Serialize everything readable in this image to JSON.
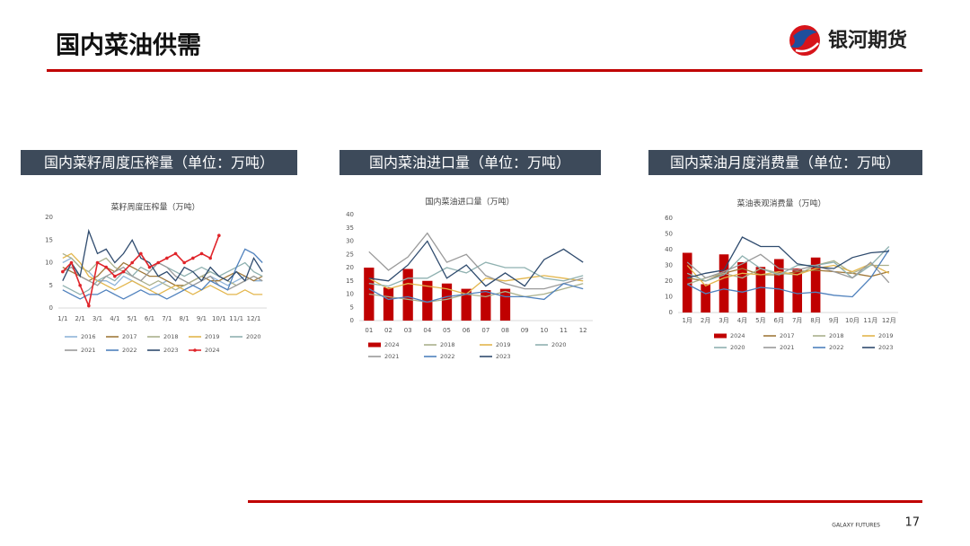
{
  "header": {
    "title": "国内菜油供需",
    "logo_text": "银河期货"
  },
  "panels": [
    "国内菜籽周度压榨量（单位：万吨）",
    "国内菜油进口量（单位：万吨）",
    "国内菜油月度消费量（单位：万吨）"
  ],
  "footer": {
    "brand": "GALAXY FUTURES",
    "page": "17"
  },
  "chart_data": [
    {
      "type": "line",
      "title": "菜籽周度压榨量（万吨）",
      "categories": [
        "1/1",
        null,
        "2/1",
        null,
        "3/1",
        null,
        "4/1",
        null,
        "5/1",
        null,
        "6/1",
        null,
        "7/1",
        null,
        "8/1",
        null,
        "9/1",
        null,
        "10/1",
        null,
        "11/1",
        null,
        "12/1",
        null
      ],
      "ylim": [
        0,
        20
      ],
      "yticks": [
        0,
        5,
        10,
        15,
        20
      ],
      "grid": false,
      "series": [
        {
          "name": "2016",
          "type": "line",
          "color": "#8fb4d9",
          "values": [
            10,
            11,
            9,
            8,
            6,
            6,
            5,
            7,
            6,
            5,
            4,
            5,
            6,
            5,
            4,
            5,
            6,
            7,
            6,
            5,
            6,
            7,
            6,
            6
          ]
        },
        {
          "name": "2017",
          "type": "line",
          "color": "#a0793a",
          "values": [
            9,
            8,
            7,
            6,
            7,
            9,
            8,
            10,
            9,
            8,
            7,
            7,
            6,
            5,
            5,
            6,
            7,
            6,
            6,
            7,
            8,
            7,
            6,
            7
          ]
        },
        {
          "name": "2018",
          "type": "line",
          "color": "#aab08c",
          "values": [
            12,
            11,
            9,
            8,
            10,
            11,
            9,
            8,
            7,
            6,
            5,
            6,
            5,
            4,
            5,
            6,
            7,
            8,
            7,
            6,
            5,
            6,
            7,
            6
          ]
        },
        {
          "name": "2019",
          "type": "line",
          "color": "#e3b64c",
          "values": [
            11,
            12,
            10,
            7,
            6,
            5,
            4,
            5,
            6,
            5,
            4,
            3,
            4,
            5,
            4,
            3,
            4,
            5,
            4,
            3,
            3,
            4,
            3,
            3
          ]
        },
        {
          "name": "2020",
          "type": "line",
          "color": "#8fb1b0",
          "values": [
            5,
            4,
            3,
            4,
            6,
            7,
            6,
            8,
            7,
            9,
            8,
            10,
            9,
            8,
            7,
            8,
            9,
            8,
            7,
            8,
            9,
            10,
            8,
            7
          ]
        },
        {
          "name": "2021",
          "type": "line",
          "color": "#9a9a9a",
          "values": [
            8,
            9,
            7,
            6,
            5,
            7,
            8,
            9,
            7,
            6,
            8,
            10,
            9,
            7,
            6,
            5,
            6,
            7,
            5,
            4,
            5,
            6,
            7,
            6
          ]
        },
        {
          "name": "2022",
          "type": "line",
          "color": "#4f81bd",
          "values": [
            4,
            3,
            2,
            3,
            3,
            4,
            3,
            2,
            3,
            4,
            3,
            3,
            2,
            3,
            4,
            5,
            4,
            6,
            5,
            4,
            9,
            13,
            12,
            10
          ]
        },
        {
          "name": "2023",
          "type": "line",
          "color": "#2f4b6e",
          "values": [
            6,
            10,
            7,
            17,
            12,
            13,
            10,
            12,
            15,
            11,
            10,
            7,
            8,
            6,
            9,
            8,
            6,
            9,
            7,
            6,
            8,
            6,
            11,
            8
          ]
        },
        {
          "name": "2024",
          "type": "line",
          "color": "#e0242a",
          "markers": true,
          "values": [
            8,
            10,
            5,
            0.5,
            10,
            9,
            7,
            8,
            10,
            12,
            9,
            10,
            11,
            12,
            10,
            11,
            12,
            11,
            16,
            null,
            null,
            null,
            null,
            null
          ]
        }
      ]
    },
    {
      "type": "combo",
      "title": "国内菜油进口量（万吨）",
      "categories": [
        "01",
        "02",
        "03",
        "04",
        "05",
        "06",
        "07",
        "08",
        "09",
        "10",
        "11",
        "12"
      ],
      "ylim": [
        0,
        40
      ],
      "yticks": [
        0,
        5,
        10,
        15,
        20,
        25,
        30,
        35,
        40
      ],
      "grid": false,
      "series": [
        {
          "name": "2024",
          "type": "bar",
          "color": "#c00000",
          "values": [
            20,
            12.5,
            19.5,
            15,
            14,
            12,
            11.5,
            12,
            null,
            null,
            null,
            null
          ]
        },
        {
          "name": "2018",
          "type": "line",
          "color": "#aab08c",
          "values": [
            10,
            9,
            8,
            7,
            8,
            10,
            9,
            11,
            9,
            10,
            12,
            14
          ]
        },
        {
          "name": "2019",
          "type": "line",
          "color": "#e3b64c",
          "values": [
            16,
            12,
            14,
            13,
            12,
            10,
            16,
            15,
            16,
            17,
            16,
            15
          ]
        },
        {
          "name": "2020",
          "type": "line",
          "color": "#8fb1b0",
          "values": [
            14,
            13,
            16,
            16,
            20,
            18,
            22,
            20,
            20,
            16,
            15,
            17
          ]
        },
        {
          "name": "2021",
          "type": "line",
          "color": "#9a9a9a",
          "values": [
            26,
            19,
            24,
            33,
            22,
            25,
            17,
            14,
            12,
            12,
            14,
            16
          ]
        },
        {
          "name": "2022",
          "type": "line",
          "color": "#4f81bd",
          "values": [
            12,
            8,
            9,
            7,
            9,
            10,
            11,
            9,
            9,
            8,
            14,
            12
          ]
        },
        {
          "name": "2023",
          "type": "line",
          "color": "#2f4b6e",
          "values": [
            16,
            15,
            21,
            30,
            16,
            21,
            13,
            18,
            13,
            23,
            27,
            22
          ]
        }
      ]
    },
    {
      "type": "combo",
      "title": "菜油表观消费量（万吨）",
      "categories": [
        "1月",
        "2月",
        "3月",
        "4月",
        "5月",
        "6月",
        "7月",
        "8月",
        "9月",
        "10月",
        "11月",
        "12月"
      ],
      "ylim": [
        0,
        60
      ],
      "yticks": [
        0,
        10,
        20,
        30,
        40,
        50,
        60
      ],
      "grid": false,
      "series": [
        {
          "name": "2024",
          "type": "bar",
          "color": "#c00000",
          "values": [
            38,
            18,
            37,
            32,
            29,
            34,
            28,
            35,
            null,
            null,
            null,
            null
          ]
        },
        {
          "name": "2017",
          "type": "line",
          "color": "#a0793a",
          "values": [
            22,
            20,
            25,
            28,
            24,
            24,
            26,
            27,
            26,
            25,
            23,
            26
          ]
        },
        {
          "name": "2018",
          "type": "line",
          "color": "#aab08c",
          "values": [
            18,
            22,
            25,
            22,
            28,
            25,
            24,
            30,
            33,
            25,
            30,
            30
          ]
        },
        {
          "name": "2019",
          "type": "line",
          "color": "#e3b64c",
          "values": [
            30,
            17,
            22,
            25,
            24,
            26,
            24,
            28,
            30,
            26,
            31,
            25
          ]
        },
        {
          "name": "2020",
          "type": "line",
          "color": "#8fb1b0",
          "values": [
            25,
            20,
            24,
            36,
            28,
            24,
            30,
            30,
            32,
            22,
            30,
            42
          ]
        },
        {
          "name": "2021",
          "type": "line",
          "color": "#9a9a9a",
          "values": [
            32,
            22,
            26,
            31,
            37,
            28,
            27,
            30,
            26,
            22,
            32,
            19
          ]
        },
        {
          "name": "2022",
          "type": "line",
          "color": "#4f81bd",
          "values": [
            18,
            12,
            15,
            13,
            16,
            15,
            12,
            13,
            11,
            10,
            22,
            40
          ]
        },
        {
          "name": "2023",
          "type": "line",
          "color": "#2f4b6e",
          "values": [
            22,
            25,
            27,
            48,
            42,
            42,
            31,
            29,
            28,
            35,
            38,
            39
          ]
        }
      ]
    }
  ]
}
